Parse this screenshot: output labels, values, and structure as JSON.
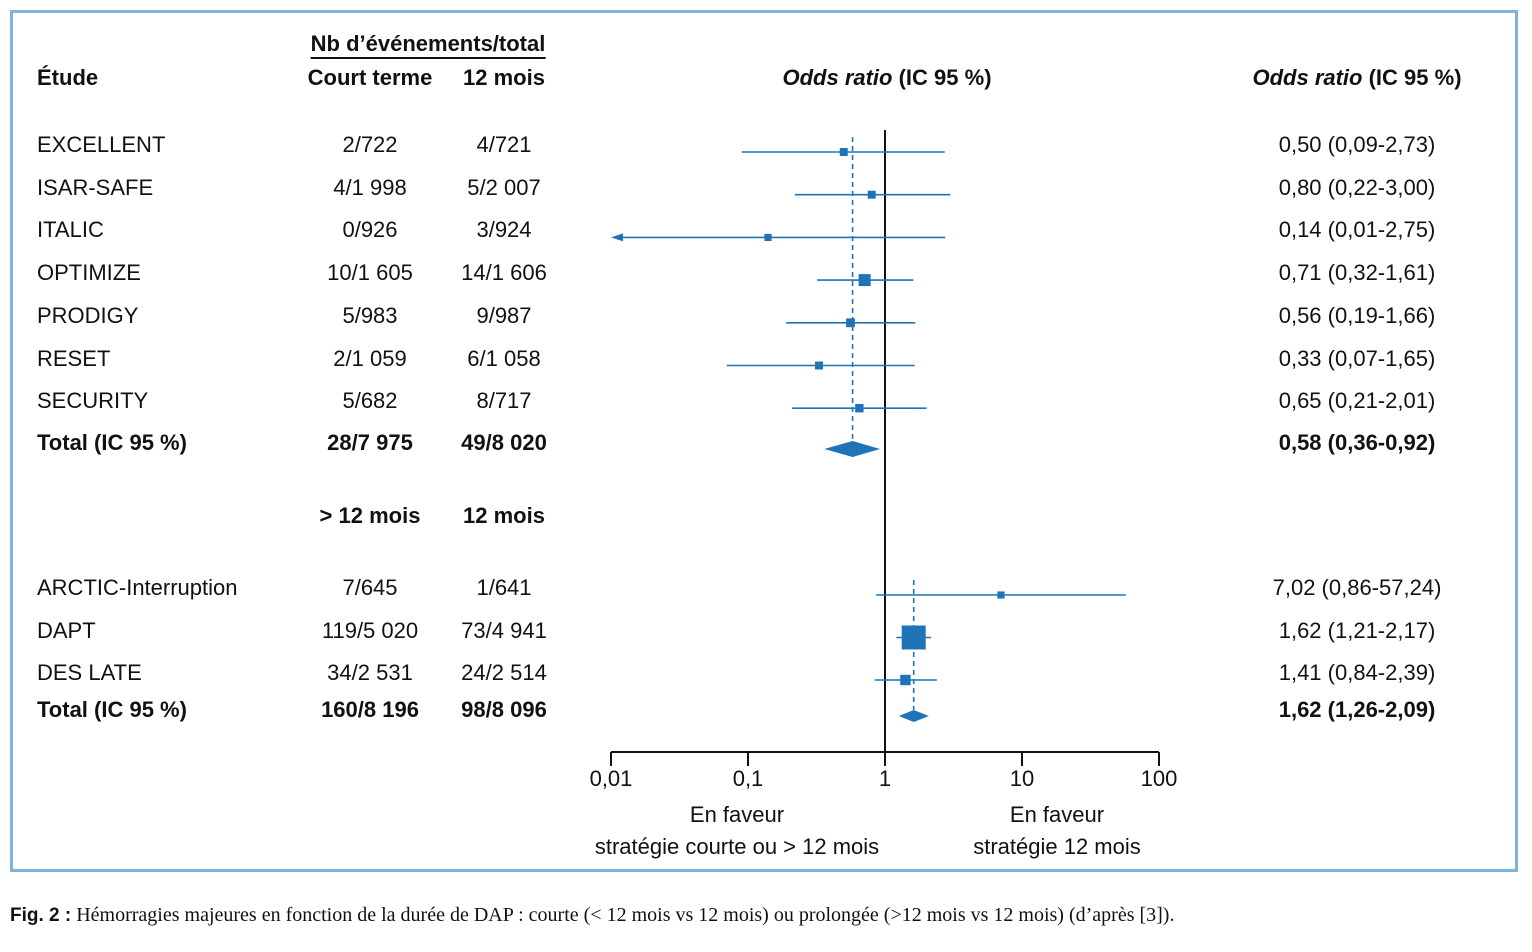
{
  "header": {
    "study_col": "Étude",
    "events_title": "Nb d’événements/total",
    "group1_col": "Court terme",
    "group2_col": "12 mois",
    "plot_col_italic": "Odds ratio",
    "plot_col_rest": " (IC 95 %)",
    "or_col_italic": "Odds ratio",
    "or_col_rest": " (IC 95 %)"
  },
  "subheader2": {
    "group1_col": "> 12 mois",
    "group2_col": "12 mois"
  },
  "axis_labels": {
    "left_line1": "En faveur",
    "left_line2": "stratégie courte ou > 12 mois",
    "right_line1": "En faveur",
    "right_line2": "stratégie  12 mois"
  },
  "caption": {
    "label": "Fig. 2 :",
    "text": " Hémorragies majeures en fonction de la durée de DAP : courte (< 12 mois vs 12 mois) ou prolongée (>12 mois vs 12 mois) (d’après [3])."
  },
  "colors": {
    "marker": "#1f74b8",
    "frame": "#7eb3dd",
    "axis": "#111111"
  },
  "chart_data": {
    "type": "forest",
    "xscale": "log",
    "xlim": [
      0.01,
      100
    ],
    "xticks": [
      0.01,
      0.1,
      1,
      10,
      100
    ],
    "xtick_labels": [
      "0,01",
      "0,1",
      "1",
      "10",
      "100"
    ],
    "reference_line": 1,
    "groups": [
      {
        "studies": [
          {
            "name": "EXCELLENT",
            "events1": "2/722",
            "events2": "4/721",
            "or": 0.5,
            "lo": 0.09,
            "hi": 2.73,
            "label": "0,50 (0,09-2,73)",
            "weight": 1
          },
          {
            "name": "ISAR-SAFE",
            "events1": "4/1 998",
            "events2": "5/2 007",
            "or": 0.8,
            "lo": 0.22,
            "hi": 3.0,
            "label": "0,80 (0,22-3,00)",
            "weight": 1
          },
          {
            "name": "ITALIC",
            "events1": "0/926",
            "events2": "3/924",
            "or": 0.14,
            "lo": 0.01,
            "hi": 2.75,
            "label": "0,14 (0,01-2,75)",
            "weight": 0.8,
            "arrow_left": true
          },
          {
            "name": "OPTIMIZE",
            "events1": "10/1 605",
            "events2": "14/1 606",
            "or": 0.71,
            "lo": 0.32,
            "hi": 1.61,
            "label": "0,71 (0,32-1,61)",
            "weight": 2
          },
          {
            "name": "PRODIGY",
            "events1": "5/983",
            "events2": "9/987",
            "or": 0.56,
            "lo": 0.19,
            "hi": 1.66,
            "label": "0,56 (0,19-1,66)",
            "weight": 1.2
          },
          {
            "name": "RESET",
            "events1": "2/1 059",
            "events2": "6/1 058",
            "or": 0.33,
            "lo": 0.07,
            "hi": 1.65,
            "label": "0,33 (0,07-1,65)",
            "weight": 1
          },
          {
            "name": "SECURITY",
            "events1": "5/682",
            "events2": "8/717",
            "or": 0.65,
            "lo": 0.21,
            "hi": 2.01,
            "label": "0,65 (0,21-2,01)",
            "weight": 1.1
          }
        ],
        "total": {
          "name": "Total (IC 95 %)",
          "events1": "28/7 975",
          "events2": "49/8 020",
          "or": 0.58,
          "lo": 0.36,
          "hi": 0.92,
          "label": "0,58 (0,36-0,92)"
        }
      },
      {
        "studies": [
          {
            "name": "ARCTIC-Interruption",
            "events1": "7/645",
            "events2": "1/641",
            "or": 7.02,
            "lo": 0.86,
            "hi": 57.24,
            "label": "7,02 (0,86-57,24)",
            "weight": 0.8
          },
          {
            "name": "DAPT",
            "events1": "119/5 020",
            "events2": "73/4 941",
            "or": 1.62,
            "lo": 1.21,
            "hi": 2.17,
            "label": "1,62 (1,21-2,17)",
            "weight": 5
          },
          {
            "name": "DES LATE",
            "events1": "34/2 531",
            "events2": "24/2 514",
            "or": 1.41,
            "lo": 0.84,
            "hi": 2.39,
            "label": "1,41 (0,84-2,39)",
            "weight": 1.6
          }
        ],
        "total": {
          "name": "Total (IC 95 %)",
          "events1": "160/8 196",
          "events2": "98/8 096",
          "or": 1.62,
          "lo": 1.26,
          "hi": 2.09,
          "label": "1,62 (1,26-2,09)"
        }
      }
    ]
  }
}
